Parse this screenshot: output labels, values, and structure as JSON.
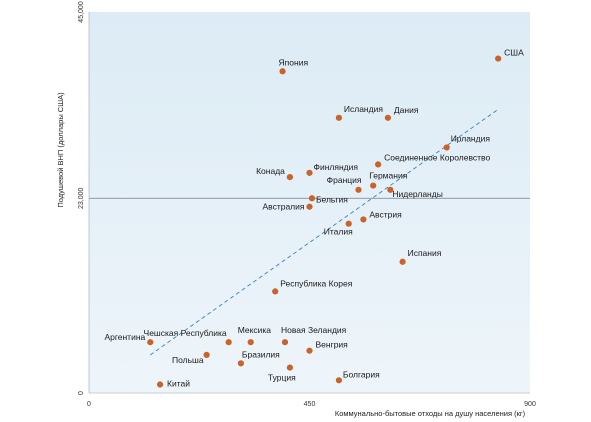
{
  "chart_data": {
    "type": "scatter",
    "title": "",
    "xlabel": "Коммунально-бытовые отходы на душу населения (кг)",
    "ylabel": "Подушевой ВНП (доллары США)",
    "xlim": [
      0,
      900
    ],
    "ylim": [
      0,
      45000
    ],
    "x_ticks": [
      {
        "value": 0,
        "label": "0"
      },
      {
        "value": 450,
        "label": "450"
      },
      {
        "value": 900,
        "label": "900"
      }
    ],
    "y_ticks": [
      {
        "value": 0,
        "label": "0"
      },
      {
        "value": 23000,
        "label": "23,000"
      },
      {
        "value": 45000,
        "label": "45,000"
      }
    ],
    "reference_line": {
      "y": 23000
    },
    "trend_line": {
      "from": [
        125,
        4500
      ],
      "to": [
        835,
        33500
      ]
    },
    "points": [
      {
        "name": "США",
        "x": 835,
        "y": 39500,
        "anchor": "start",
        "dx": 6,
        "dy": -3
      },
      {
        "name": "Япония",
        "x": 395,
        "y": 38000,
        "anchor": "start",
        "dx": -4,
        "dy": -6
      },
      {
        "name": "Исландия",
        "x": 510,
        "y": 32500,
        "anchor": "start",
        "dx": 5,
        "dy": -6
      },
      {
        "name": "Дания",
        "x": 610,
        "y": 32500,
        "anchor": "start",
        "dx": 6,
        "dy": -5
      },
      {
        "name": "Ирландия",
        "x": 730,
        "y": 29000,
        "anchor": "start",
        "dx": 4,
        "dy": -6
      },
      {
        "name": "Соединенное Королевство",
        "x": 590,
        "y": 27000,
        "anchor": "start",
        "dx": 6,
        "dy": -4
      },
      {
        "name": "Финляндия",
        "x": 450,
        "y": 26000,
        "anchor": "start",
        "dx": 4,
        "dy": -3
      },
      {
        "name": "Конада",
        "x": 410,
        "y": 25500,
        "anchor": "end",
        "dx": -5,
        "dy": -3
      },
      {
        "name": "Германия",
        "x": 580,
        "y": 24500,
        "anchor": "start",
        "dx": -4,
        "dy": -7
      },
      {
        "name": "Франция",
        "x": 550,
        "y": 24000,
        "anchor": "end",
        "dx": 3,
        "dy": -7
      },
      {
        "name": "Нидерланды",
        "x": 615,
        "y": 24000,
        "anchor": "start",
        "dx": 2,
        "dy": 7
      },
      {
        "name": "Бельгия",
        "x": 455,
        "y": 23000,
        "anchor": "start",
        "dx": 4,
        "dy": 4
      },
      {
        "name": "Австралия",
        "x": 450,
        "y": 22000,
        "anchor": "end",
        "dx": -5,
        "dy": 3
      },
      {
        "name": "Австрия",
        "x": 560,
        "y": 20500,
        "anchor": "start",
        "dx": 6,
        "dy": -2
      },
      {
        "name": "Италия",
        "x": 530,
        "y": 20000,
        "anchor": "end",
        "dx": 4,
        "dy": 11
      },
      {
        "name": "Испания",
        "x": 640,
        "y": 15500,
        "anchor": "start",
        "dx": 5,
        "dy": -6
      },
      {
        "name": "Республика Корея",
        "x": 380,
        "y": 12000,
        "anchor": "start",
        "dx": 5,
        "dy": -5
      },
      {
        "name": "Новая Зеландия",
        "x": 400,
        "y": 6000,
        "anchor": "start",
        "dx": -4,
        "dy": -9
      },
      {
        "name": "Мексика",
        "x": 330,
        "y": 6000,
        "anchor": "start",
        "dx": -13,
        "dy": -9
      },
      {
        "name": "Чешская Республика",
        "x": 285,
        "y": 6000,
        "anchor": "end",
        "dx": -2,
        "dy": -6
      },
      {
        "name": "Аргентина",
        "x": 125,
        "y": 6000,
        "anchor": "end",
        "dx": -5,
        "dy": -2
      },
      {
        "name": "Венгрия",
        "x": 450,
        "y": 5000,
        "anchor": "start",
        "dx": 6,
        "dy": -3
      },
      {
        "name": "Польша",
        "x": 240,
        "y": 4500,
        "anchor": "end",
        "dx": -3,
        "dy": 8
      },
      {
        "name": "Бразилия",
        "x": 310,
        "y": 3500,
        "anchor": "start",
        "dx": 1,
        "dy": -6
      },
      {
        "name": "Турция",
        "x": 410,
        "y": 3000,
        "anchor": "start",
        "dx": -22,
        "dy": 13
      },
      {
        "name": "Болгария",
        "x": 510,
        "y": 1500,
        "anchor": "start",
        "dx": 4,
        "dy": -3
      },
      {
        "name": "Китай",
        "x": 145,
        "y": 1000,
        "anchor": "start",
        "dx": 7,
        "dy": 2
      }
    ],
    "colors": {
      "plot_background_top": "#dcebf5",
      "plot_background_bottom": "#eef5fa",
      "point": "#c8632a",
      "trend_line": "#3d7fc1",
      "reference_line": "#6f7f8c"
    }
  }
}
